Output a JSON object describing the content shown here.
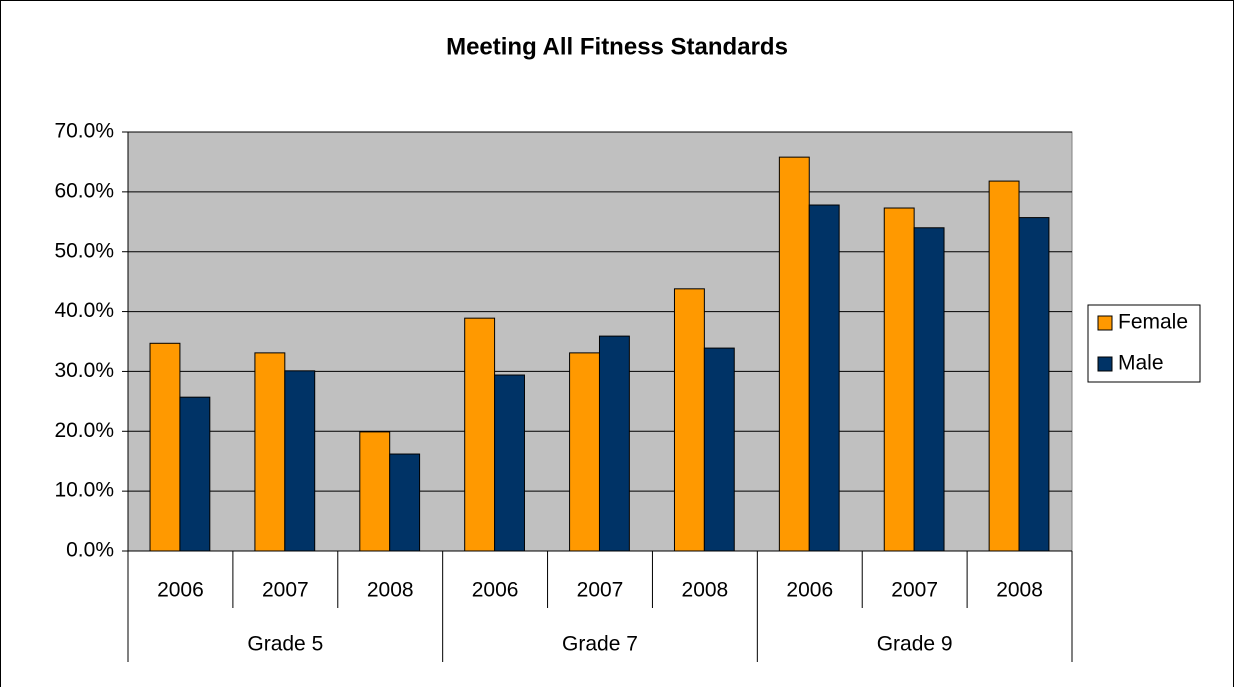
{
  "chart_data": {
    "type": "bar",
    "title": "Meeting All Fitness Standards",
    "categories": [
      "2006",
      "2007",
      "2008",
      "2006",
      "2007",
      "2008",
      "2006",
      "2007",
      "2008"
    ],
    "groups": [
      "Grade 5",
      "Grade 7",
      "Grade 9"
    ],
    "series": [
      {
        "name": "Female",
        "color": "#ff9900",
        "values": [
          34.7,
          33.1,
          19.9,
          38.9,
          33.1,
          43.8,
          65.8,
          57.3,
          61.8
        ]
      },
      {
        "name": "Male",
        "color": "#003366",
        "values": [
          25.7,
          30.1,
          16.2,
          29.4,
          35.9,
          33.9,
          57.8,
          54.0,
          55.7
        ]
      }
    ],
    "ylim": [
      0,
      70
    ],
    "yticks": [
      {
        "value": 0,
        "label": "0.0%"
      },
      {
        "value": 10,
        "label": "10.0%"
      },
      {
        "value": 20,
        "label": "20.0%"
      },
      {
        "value": 30,
        "label": "30.0%"
      },
      {
        "value": 40,
        "label": "40.0%"
      },
      {
        "value": 50,
        "label": "50.0%"
      },
      {
        "value": 60,
        "label": "60.0%"
      },
      {
        "value": 70,
        "label": "70.0%"
      }
    ],
    "grid": true,
    "legend": "right"
  }
}
